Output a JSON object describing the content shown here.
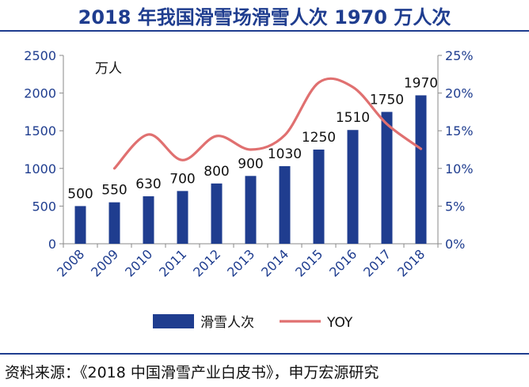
{
  "title": "2018 年我国滑雪场滑雪人次 1970 万人次",
  "source": "资料来源：《2018 中国滑雪产业白皮书》，申万宏源研究",
  "chart_data": {
    "type": "bar",
    "title": "2018 年我国滑雪场滑雪人次 1970 万人次",
    "unit_label": "万人",
    "categories": [
      "2008",
      "2009",
      "2010",
      "2011",
      "2012",
      "2013",
      "2014",
      "2015",
      "2016",
      "2017",
      "2018"
    ],
    "series": [
      {
        "name": "滑雪人次",
        "type": "bar",
        "axis": "left",
        "color": "#1F3D8F",
        "values": [
          500,
          550,
          630,
          700,
          800,
          900,
          1030,
          1250,
          1510,
          1750,
          1970
        ]
      },
      {
        "name": "YOY",
        "type": "line",
        "axis": "right",
        "color": "#E07070",
        "values": [
          null,
          10.0,
          14.5,
          11.1,
          14.3,
          12.5,
          14.4,
          21.4,
          20.8,
          15.9,
          12.6
        ]
      }
    ],
    "y_left": {
      "min": 0,
      "max": 2500,
      "ticks": [
        "0",
        "500",
        "1000",
        "1500",
        "2000",
        "2500"
      ]
    },
    "y_right": {
      "min": 0,
      "max": 25,
      "ticks": [
        "0%",
        "5%",
        "10%",
        "15%",
        "20%",
        "25%"
      ]
    },
    "data_labels": [
      "500",
      "550",
      "630",
      "700",
      "800",
      "900",
      "1030",
      "1250",
      "1510",
      "1750",
      "1970"
    ],
    "legend": [
      "滑雪人次",
      "YOY"
    ]
  }
}
